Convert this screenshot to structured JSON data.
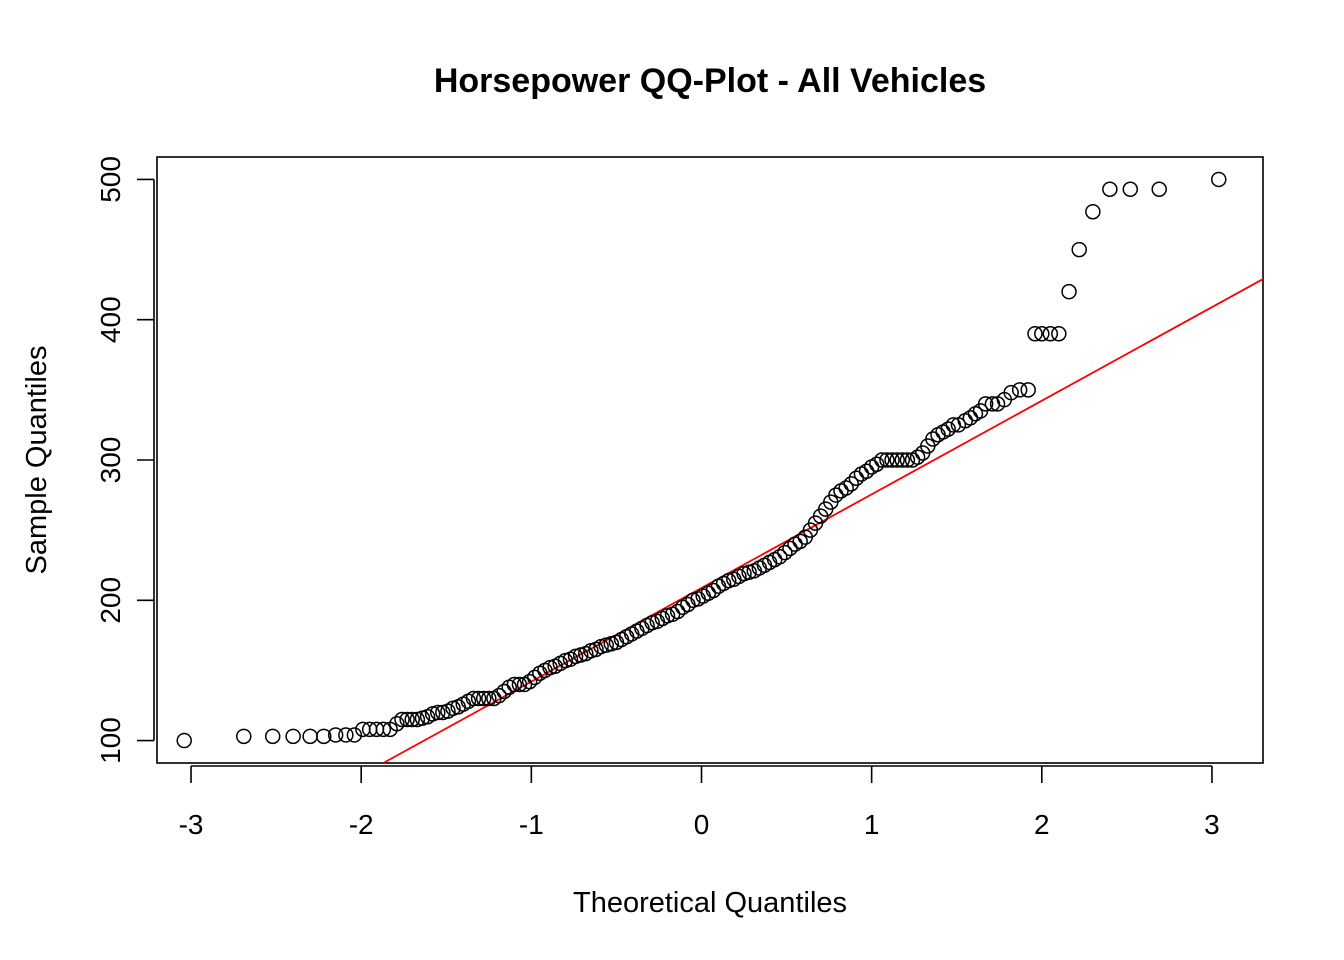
{
  "chart_data": {
    "type": "scatter",
    "title": "Horsepower QQ-Plot - All Vehicles",
    "xlabel": "Theoretical Quantiles",
    "ylabel": "Sample Quantiles",
    "xlim": [
      -3.2,
      3.3
    ],
    "ylim": [
      84,
      516
    ],
    "x_ticks": [
      -3,
      -2,
      -1,
      0,
      1,
      2,
      3
    ],
    "x_tick_labels": [
      "-3",
      "-2",
      "-1",
      "0",
      "1",
      "2",
      "3"
    ],
    "y_ticks": [
      100,
      200,
      300,
      400,
      500
    ],
    "y_tick_labels": [
      "100",
      "200",
      "300",
      "400",
      "500"
    ],
    "grid": false,
    "legend": "none",
    "point_style": "open-circle",
    "point_color": "#000000",
    "reference_line": {
      "color": "#ff0000",
      "points": [
        [
          -1.87,
          84
        ],
        [
          3.3,
          429
        ]
      ]
    },
    "series": [
      {
        "values": [
          [
            -3.04,
            100
          ],
          [
            -2.69,
            103
          ],
          [
            -2.52,
            103
          ],
          [
            -2.4,
            103
          ],
          [
            -2.3,
            103
          ],
          [
            -2.22,
            103
          ],
          [
            -2.15,
            104
          ],
          [
            -2.09,
            104
          ],
          [
            -2.04,
            104
          ],
          [
            -1.99,
            108
          ],
          [
            -1.95,
            108
          ],
          [
            -1.91,
            108
          ],
          [
            -1.87,
            108
          ],
          [
            -1.83,
            108
          ],
          [
            -1.79,
            112
          ],
          [
            -1.76,
            115
          ],
          [
            -1.73,
            115
          ],
          [
            -1.7,
            115
          ],
          [
            -1.67,
            115
          ],
          [
            -1.64,
            116
          ],
          [
            -1.61,
            117
          ],
          [
            -1.58,
            119
          ],
          [
            -1.55,
            120
          ],
          [
            -1.52,
            120
          ],
          [
            -1.49,
            121
          ],
          [
            -1.46,
            123
          ],
          [
            -1.43,
            124
          ],
          [
            -1.4,
            126
          ],
          [
            -1.37,
            128
          ],
          [
            -1.34,
            130
          ],
          [
            -1.31,
            130
          ],
          [
            -1.28,
            130
          ],
          [
            -1.25,
            130
          ],
          [
            -1.22,
            130
          ],
          [
            -1.19,
            132
          ],
          [
            -1.16,
            135
          ],
          [
            -1.13,
            138
          ],
          [
            -1.1,
            140
          ],
          [
            -1.07,
            140
          ],
          [
            -1.04,
            140
          ],
          [
            -1.01,
            142
          ],
          [
            -0.98,
            145
          ],
          [
            -0.95,
            148
          ],
          [
            -0.92,
            150
          ],
          [
            -0.89,
            152
          ],
          [
            -0.86,
            153
          ],
          [
            -0.83,
            155
          ],
          [
            -0.8,
            157
          ],
          [
            -0.77,
            158
          ],
          [
            -0.74,
            160
          ],
          [
            -0.71,
            161
          ],
          [
            -0.68,
            162
          ],
          [
            -0.65,
            164
          ],
          [
            -0.62,
            165
          ],
          [
            -0.59,
            167
          ],
          [
            -0.56,
            168
          ],
          [
            -0.53,
            169
          ],
          [
            -0.5,
            170
          ],
          [
            -0.47,
            172
          ],
          [
            -0.44,
            174
          ],
          [
            -0.41,
            176
          ],
          [
            -0.38,
            178
          ],
          [
            -0.35,
            180
          ],
          [
            -0.32,
            182
          ],
          [
            -0.29,
            184
          ],
          [
            -0.26,
            185
          ],
          [
            -0.23,
            187
          ],
          [
            -0.2,
            189
          ],
          [
            -0.17,
            190
          ],
          [
            -0.14,
            192
          ],
          [
            -0.11,
            195
          ],
          [
            -0.08,
            197
          ],
          [
            -0.05,
            200
          ],
          [
            -0.02,
            201
          ],
          [
            0.01,
            203
          ],
          [
            0.04,
            205
          ],
          [
            0.07,
            207
          ],
          [
            0.1,
            210
          ],
          [
            0.13,
            212
          ],
          [
            0.16,
            214
          ],
          [
            0.19,
            215
          ],
          [
            0.22,
            217
          ],
          [
            0.25,
            219
          ],
          [
            0.28,
            220
          ],
          [
            0.31,
            221
          ],
          [
            0.34,
            223
          ],
          [
            0.37,
            225
          ],
          [
            0.4,
            227
          ],
          [
            0.43,
            229
          ],
          [
            0.46,
            231
          ],
          [
            0.49,
            234
          ],
          [
            0.52,
            237
          ],
          [
            0.55,
            240
          ],
          [
            0.58,
            242
          ],
          [
            0.61,
            245
          ],
          [
            0.64,
            250
          ],
          [
            0.67,
            255
          ],
          [
            0.7,
            260
          ],
          [
            0.73,
            265
          ],
          [
            0.76,
            270
          ],
          [
            0.79,
            275
          ],
          [
            0.82,
            278
          ],
          [
            0.85,
            280
          ],
          [
            0.88,
            283
          ],
          [
            0.91,
            287
          ],
          [
            0.94,
            290
          ],
          [
            0.97,
            292
          ],
          [
            1.0,
            295
          ],
          [
            1.03,
            297
          ],
          [
            1.06,
            300
          ],
          [
            1.09,
            300
          ],
          [
            1.12,
            300
          ],
          [
            1.15,
            300
          ],
          [
            1.18,
            300
          ],
          [
            1.21,
            300
          ],
          [
            1.24,
            300
          ],
          [
            1.27,
            302
          ],
          [
            1.3,
            305
          ],
          [
            1.33,
            310
          ],
          [
            1.36,
            315
          ],
          [
            1.39,
            318
          ],
          [
            1.42,
            320
          ],
          [
            1.45,
            322
          ],
          [
            1.48,
            325
          ],
          [
            1.51,
            325
          ],
          [
            1.55,
            328
          ],
          [
            1.58,
            330
          ],
          [
            1.61,
            333
          ],
          [
            1.64,
            335
          ],
          [
            1.67,
            340
          ],
          [
            1.71,
            340
          ],
          [
            1.74,
            340
          ],
          [
            1.78,
            343
          ],
          [
            1.82,
            348
          ],
          [
            1.87,
            350
          ],
          [
            1.92,
            350
          ],
          [
            1.96,
            390
          ],
          [
            2.0,
            390
          ],
          [
            2.05,
            390
          ],
          [
            2.1,
            390
          ],
          [
            2.16,
            420
          ],
          [
            2.22,
            450
          ],
          [
            2.3,
            477
          ],
          [
            2.4,
            493
          ],
          [
            2.52,
            493
          ],
          [
            2.69,
            493
          ],
          [
            3.04,
            500
          ]
        ]
      }
    ]
  }
}
